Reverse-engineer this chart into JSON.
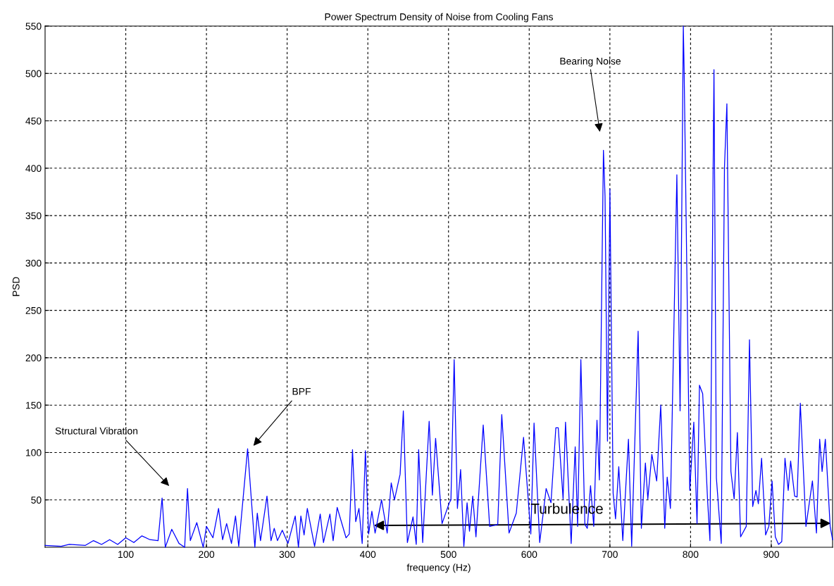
{
  "chart_data": {
    "type": "line",
    "title": "Power Spectrum Density of Noise from Cooling Fans",
    "xlabel": "frequency (Hz)",
    "ylabel": "PSD",
    "xlim": [
      0,
      976
    ],
    "ylim": [
      0,
      550
    ],
    "xticks": [
      100,
      200,
      300,
      400,
      500,
      600,
      700,
      800,
      900
    ],
    "yticks": [
      50,
      100,
      150,
      200,
      250,
      300,
      350,
      400,
      450,
      500,
      550
    ],
    "grid": true,
    "marker": "none",
    "line_style": "solid",
    "series": [
      {
        "color": "#0000ff",
        "x": [
          0,
          20,
          30,
          50,
          60,
          70,
          80,
          90,
          100,
          110,
          120,
          130,
          140,
          145,
          149,
          157,
          166,
          173,
          176.5,
          180,
          188,
          196,
          200,
          208,
          215,
          220,
          225,
          231,
          236,
          240,
          251,
          260,
          263,
          267,
          275,
          280,
          284,
          288,
          294,
          301,
          310,
          314,
          317,
          321,
          325,
          334,
          341,
          345,
          353,
          357,
          362,
          373,
          377,
          381,
          385,
          389,
          393,
          397,
          401,
          405,
          409,
          417,
          424,
          429,
          433,
          440,
          444,
          449,
          456,
          460,
          463,
          468,
          476,
          480,
          484,
          492,
          501,
          503,
          507,
          511,
          515,
          519,
          523,
          526,
          530,
          534,
          543,
          551,
          561,
          566,
          575,
          584,
          593,
          602,
          606,
          613,
          621,
          627,
          633,
          636,
          642,
          645,
          652,
          657,
          660,
          664,
          669,
          672,
          676,
          680,
          684,
          687,
          692,
          694,
          697,
          700,
          704,
          707,
          711,
          716,
          723,
          727,
          735,
          739,
          744,
          747,
          752,
          758,
          763,
          768,
          771,
          775,
          783,
          787,
          791,
          792,
          799,
          804,
          808,
          811,
          815,
          821,
          824,
          829,
          832,
          838,
          842,
          845,
          850,
          854,
          858,
          862,
          869,
          873,
          877,
          881,
          884,
          888,
          893,
          897,
          901,
          905,
          909,
          913,
          917,
          921,
          924,
          929,
          932,
          936,
          943,
          951,
          956,
          960,
          963,
          967,
          973,
          976
        ],
        "values": [
          2,
          1,
          3,
          2,
          7,
          3,
          8,
          3,
          10,
          5,
          12,
          8,
          7,
          52,
          0,
          19,
          4,
          0,
          62,
          7,
          26,
          0,
          22,
          10,
          41,
          8,
          25,
          4,
          33,
          1,
          104,
          0,
          36,
          7,
          54,
          7,
          20,
          7,
          18,
          4,
          33,
          0,
          33,
          13,
          41,
          1,
          35,
          5,
          35,
          7,
          42,
          10,
          14,
          103,
          27,
          41,
          4,
          102,
          14,
          38,
          15,
          50,
          15,
          68,
          50,
          77,
          144,
          5,
          32,
          3,
          103,
          5,
          133,
          55,
          115,
          25,
          47,
          50,
          198,
          41,
          82,
          1,
          47,
          17,
          54,
          11,
          129,
          22,
          24,
          140,
          15,
          36,
          116,
          14,
          131,
          5,
          62,
          47,
          126,
          126,
          51,
          132,
          4,
          106,
          22,
          198,
          24,
          20,
          65,
          22,
          134,
          71,
          419,
          370,
          112,
          378,
          57,
          30,
          85,
          7,
          114,
          1,
          228,
          20,
          89,
          51,
          98,
          70,
          150,
          20,
          74,
          41,
          393,
          144,
          550,
          504,
          60,
          132,
          25,
          171,
          162,
          51,
          7,
          504,
          73,
          4,
          401,
          468,
          80,
          51,
          121,
          11,
          22,
          219,
          43,
          60,
          46,
          94,
          13,
          22,
          70,
          11,
          3,
          6,
          94,
          60,
          91,
          54,
          53,
          152,
          22,
          70,
          15,
          114,
          80,
          114,
          22,
          8
        ]
      }
    ],
    "annotations": [
      "Structural Vibration",
      "BPF",
      "Bearing Noise",
      "Turbulence"
    ]
  }
}
